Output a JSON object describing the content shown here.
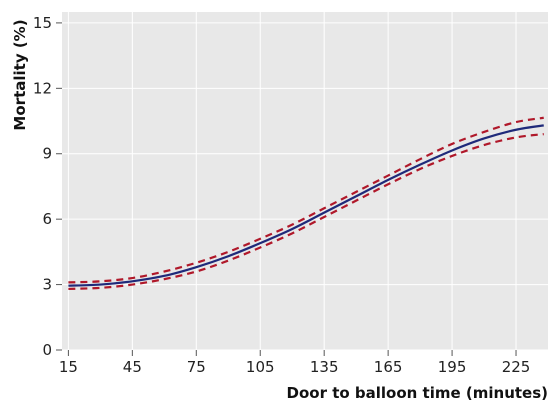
{
  "chart_data": {
    "type": "line",
    "title": "",
    "xlabel": "Door to balloon time (minutes)",
    "ylabel": "Mortality (%)",
    "xlim": [
      12,
      240
    ],
    "ylim": [
      0,
      15.5
    ],
    "xticks": [
      15,
      45,
      75,
      105,
      135,
      165,
      195,
      225
    ],
    "yticks": [
      0,
      3,
      6,
      9,
      12,
      15
    ],
    "grid": true,
    "legend": "none",
    "colors": {
      "plot_bg": "#e8e8e8",
      "grid": "#ffffff",
      "estimate": "#1f2a7a",
      "ci": "#b0182a"
    },
    "x": [
      15,
      30,
      45,
      60,
      75,
      90,
      105,
      120,
      135,
      150,
      165,
      180,
      195,
      210,
      225,
      238
    ],
    "series": [
      {
        "style": "solid",
        "values": [
          2.95,
          3.0,
          3.15,
          3.4,
          3.8,
          4.3,
          4.9,
          5.55,
          6.3,
          7.05,
          7.8,
          8.5,
          9.15,
          9.7,
          10.1,
          10.3
        ]
      },
      {
        "style": "dashed",
        "values": [
          3.1,
          3.15,
          3.3,
          3.6,
          4.0,
          4.5,
          5.1,
          5.75,
          6.5,
          7.25,
          8.0,
          8.75,
          9.45,
          10.0,
          10.45,
          10.65
        ]
      },
      {
        "style": "dashed",
        "values": [
          2.8,
          2.85,
          3.0,
          3.25,
          3.6,
          4.1,
          4.7,
          5.35,
          6.1,
          6.85,
          7.6,
          8.3,
          8.9,
          9.4,
          9.75,
          9.9
        ]
      }
    ]
  }
}
